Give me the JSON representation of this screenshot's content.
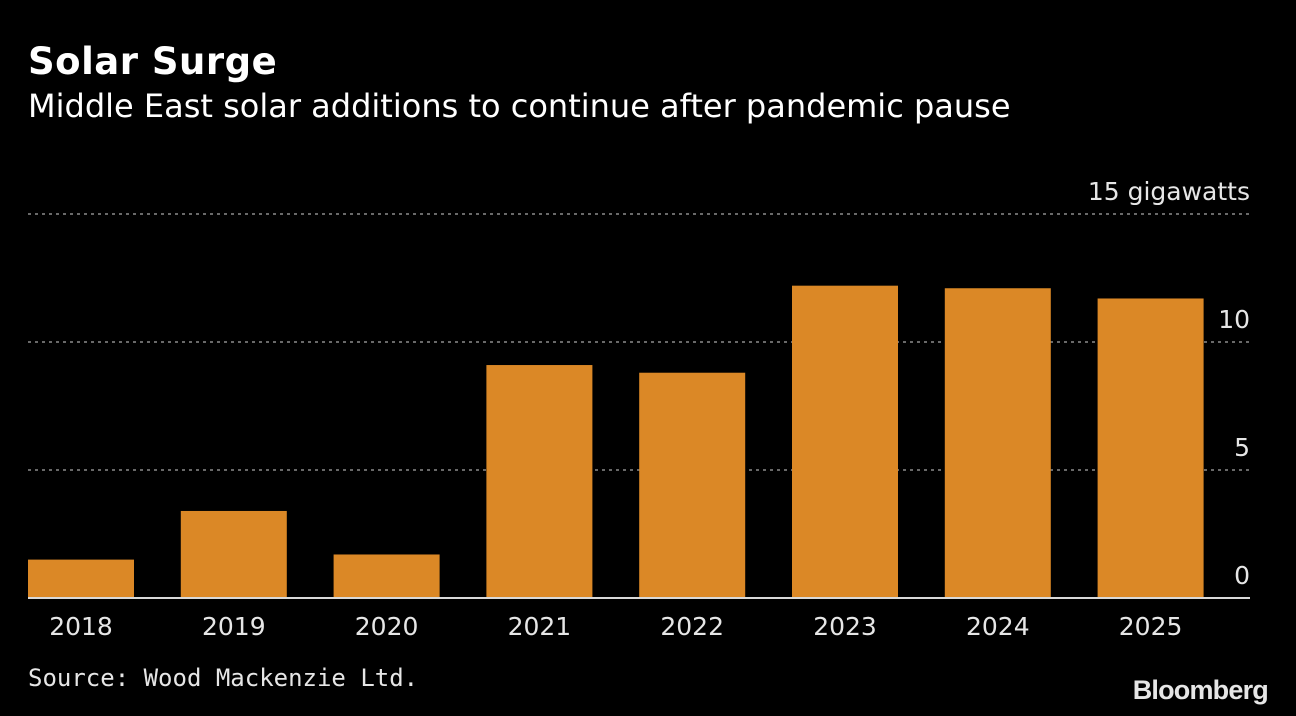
{
  "title": "Solar Surge",
  "subtitle": "Middle East solar additions to continue after pandemic pause",
  "source": "Source: Wood Mackenzie Ltd.",
  "logo": "Bloomberg",
  "colors": {
    "background": "#000000",
    "bar": "#db8826",
    "text": "#ffffff",
    "gridline": "#8c8c8c"
  },
  "chart_data": {
    "type": "bar",
    "categories": [
      "2018",
      "2019",
      "2020",
      "2021",
      "2022",
      "2023",
      "2024",
      "2025"
    ],
    "values": [
      1.5,
      3.4,
      1.7,
      9.1,
      8.8,
      12.2,
      12.1,
      11.7
    ],
    "ylim": [
      0,
      15
    ],
    "yticks": [
      0,
      5,
      10,
      15
    ],
    "ytick_labels": [
      "0",
      "5",
      "10",
      "15 gigawatts"
    ],
    "ylabel": "",
    "xlabel": "",
    "y_axis_position": "right",
    "grid": true,
    "legend": "none"
  }
}
